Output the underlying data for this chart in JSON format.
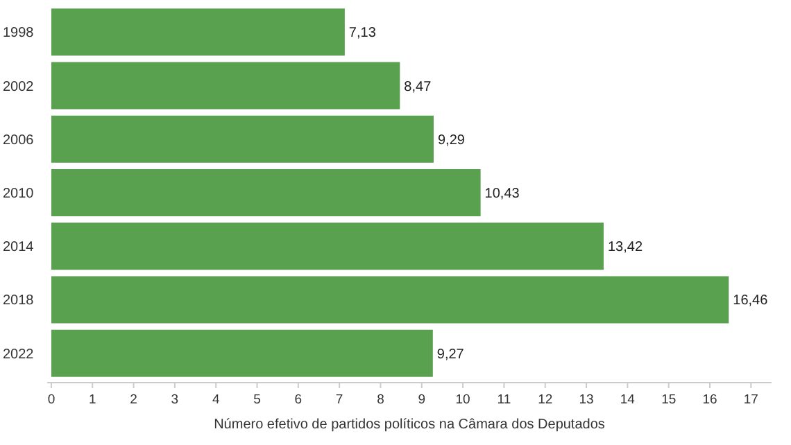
{
  "chart_data": {
    "type": "bar",
    "orientation": "horizontal",
    "xlabel": "Número efetivo de partidos políticos na Câmara dos Deputados",
    "categories": [
      "1998",
      "2002",
      "2006",
      "2010",
      "2014",
      "2018",
      "2022"
    ],
    "values": [
      7.13,
      8.47,
      9.29,
      10.43,
      13.42,
      16.46,
      9.27
    ],
    "value_labels": [
      "7,13",
      "8,47",
      "9,29",
      "10,43",
      "13,42",
      "16,46",
      "9,27"
    ],
    "color": "#59a14f",
    "xlim": [
      -0.1,
      17.5
    ],
    "xticks": [
      0,
      1,
      2,
      3,
      4,
      5,
      6,
      7,
      8,
      9,
      10,
      11,
      12,
      13,
      14,
      15,
      16,
      17
    ]
  }
}
